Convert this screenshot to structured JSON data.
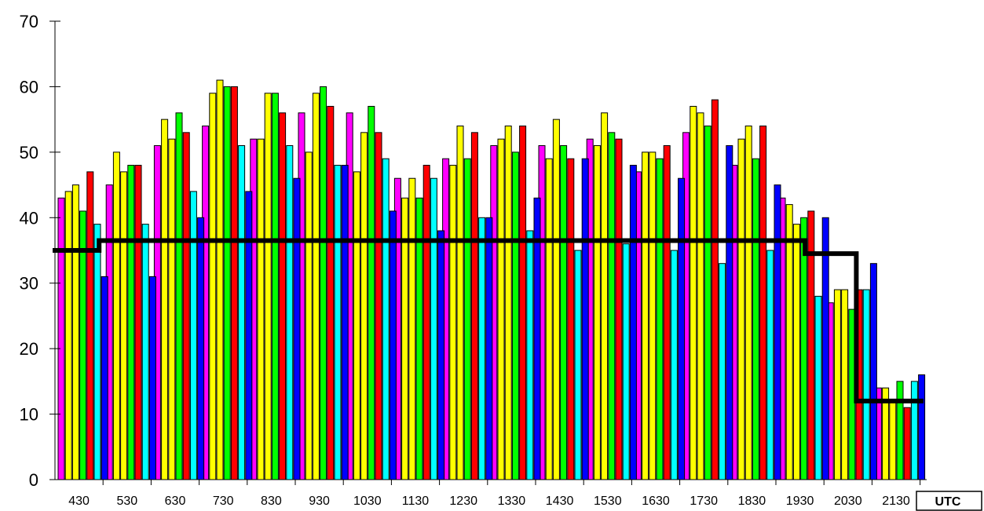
{
  "chart_data": {
    "type": "bar",
    "title": "",
    "xlabel": "UTC",
    "ylabel": "",
    "ylim": [
      0,
      70
    ],
    "yticks": [
      0,
      10,
      20,
      30,
      40,
      50,
      60,
      70
    ],
    "grid": false,
    "legend": "none",
    "categories": [
      "430",
      "530",
      "630",
      "730",
      "830",
      "930",
      "1030",
      "1130",
      "1230",
      "1330",
      "1430",
      "1530",
      "1630",
      "1730",
      "1830",
      "1930",
      "2030",
      "2130"
    ],
    "series": [
      {
        "color": "#ff00ff",
        "values": [
          43,
          45,
          51,
          54,
          52,
          56,
          56,
          46,
          49,
          51,
          51,
          52,
          47,
          53,
          48,
          43,
          27,
          14
        ]
      },
      {
        "color": "#ffff00",
        "values": [
          44,
          50,
          55,
          59,
          52,
          50,
          47,
          43,
          48,
          52,
          49,
          51,
          50,
          57,
          52,
          42,
          29,
          14
        ]
      },
      {
        "color": "#ffff00",
        "values": [
          45,
          47,
          52,
          61,
          59,
          59,
          53,
          46,
          54,
          54,
          55,
          56,
          50,
          56,
          54,
          39,
          29,
          12
        ]
      },
      {
        "color": "#00ff00",
        "values": [
          41,
          48,
          56,
          60,
          59,
          60,
          57,
          43,
          49,
          50,
          51,
          53,
          49,
          54,
          49,
          40,
          26,
          15
        ]
      },
      {
        "color": "#ff0000",
        "values": [
          47,
          48,
          53,
          60,
          56,
          57,
          53,
          48,
          53,
          54,
          49,
          52,
          51,
          58,
          54,
          41,
          29,
          11
        ]
      },
      {
        "color": "#00ffff",
        "values": [
          39,
          39,
          44,
          51,
          51,
          48,
          49,
          46,
          40,
          38,
          35,
          36,
          35,
          33,
          35,
          28,
          29,
          15
        ]
      },
      {
        "color": "#0000ff",
        "values": [
          31,
          31,
          40,
          44,
          46,
          48,
          41,
          38,
          40,
          43,
          49,
          48,
          46,
          51,
          45,
          40,
          33,
          16
        ]
      }
    ],
    "threshold_line": {
      "color": "#000000",
      "steps": [
        {
          "from": "430",
          "to": "530",
          "value": 35
        },
        {
          "from": "530",
          "to": "1930",
          "value": 36.5
        },
        {
          "from": "2030",
          "to": "2030",
          "value": 34.5
        },
        {
          "from": "2130",
          "to": "2130",
          "value": 12
        }
      ]
    }
  }
}
